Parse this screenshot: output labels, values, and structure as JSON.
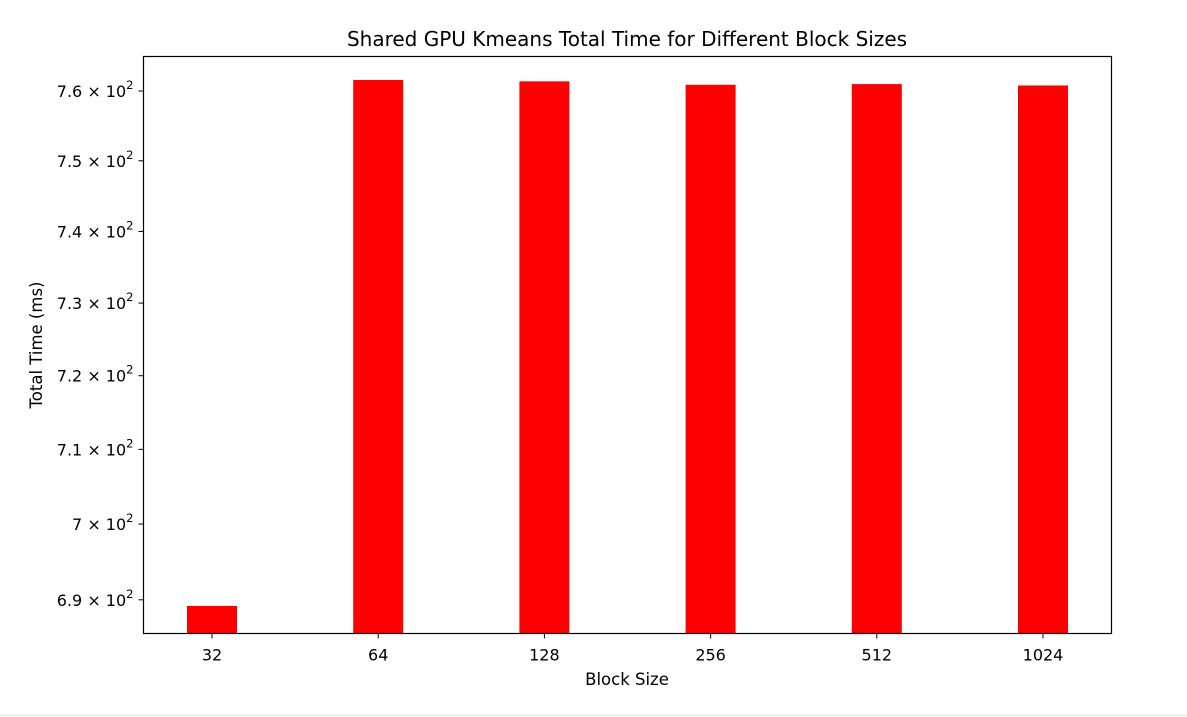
{
  "chart_data": {
    "type": "bar",
    "title": "Shared GPU Kmeans Total Time for Different Block Sizes",
    "xlabel": "Block Size",
    "ylabel": "Total Time (ms)",
    "categories": [
      "32",
      "64",
      "128",
      "256",
      "512",
      "1024"
    ],
    "values": [
      689.2,
      761.6,
      761.4,
      760.9,
      761.0,
      760.8
    ],
    "yscale": "log",
    "ylim": [
      685.6,
      765
    ],
    "yticks": [
      {
        "value": 690,
        "mantissa": "6.9"
      },
      {
        "value": 700,
        "mantissa": "7"
      },
      {
        "value": 710,
        "mantissa": "7.1"
      },
      {
        "value": 720,
        "mantissa": "7.2"
      },
      {
        "value": 730,
        "mantissa": "7.3"
      },
      {
        "value": 740,
        "mantissa": "7.4"
      },
      {
        "value": 750,
        "mantissa": "7.5"
      },
      {
        "value": 760,
        "mantissa": "7.6"
      }
    ],
    "tick_times": "×",
    "tick_base": "10",
    "tick_exponent": "2",
    "bar_color": "#ff0000",
    "grid": false,
    "legend": "none"
  }
}
